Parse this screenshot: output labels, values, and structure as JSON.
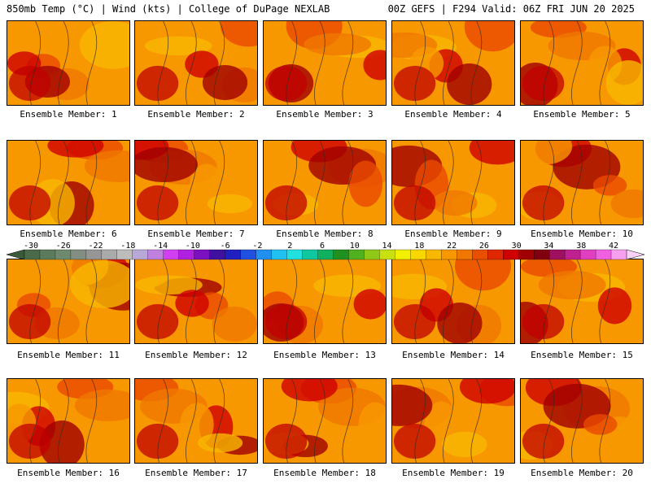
{
  "header": {
    "left": "850mb Temp (°C) | Wind (kts) | College of DuPage NEXLAB",
    "right": "00Z GEFS | F294 Valid: 06Z FRI JUN 20 2025"
  },
  "colorbar": {
    "tick_labels": [
      "-30",
      "-26",
      "-22",
      "-18",
      "-14",
      "-10",
      "-6",
      "-2",
      "2",
      "6",
      "10",
      "14",
      "18",
      "22",
      "26",
      "30",
      "34",
      "38",
      "42"
    ],
    "colors": [
      "#4a6a4a",
      "#5c7a5c",
      "#6e8a6e",
      "#828e82",
      "#969696",
      "#aaaaaa",
      "#bdbdbd",
      "#b8a8d8",
      "#c080e0",
      "#d040f0",
      "#b020e0",
      "#7a10c0",
      "#4010a0",
      "#2020c0",
      "#2050e0",
      "#2090f0",
      "#20c0f0",
      "#20e0e0",
      "#10c8a0",
      "#10b060",
      "#209020",
      "#50b020",
      "#90c818",
      "#c8e010",
      "#f0f000",
      "#f8d800",
      "#f8b800",
      "#f89800",
      "#f07800",
      "#e85000",
      "#e02800",
      "#d00000",
      "#a00000",
      "#800010",
      "#a01060",
      "#c02090",
      "#e040c0",
      "#f060e0",
      "#f8a0f0"
    ]
  },
  "panels": [
    {
      "label": "Ensemble Member: 1"
    },
    {
      "label": "Ensemble Member: 2"
    },
    {
      "label": "Ensemble Member: 3"
    },
    {
      "label": "Ensemble Member: 4"
    },
    {
      "label": "Ensemble Member: 5"
    },
    {
      "label": "Ensemble Member: 6"
    },
    {
      "label": "Ensemble Member: 7"
    },
    {
      "label": "Ensemble Member: 8"
    },
    {
      "label": "Ensemble Member: 9"
    },
    {
      "label": "Ensemble Member: 10"
    },
    {
      "label": "Ensemble Member: 11"
    },
    {
      "label": "Ensemble Member: 12"
    },
    {
      "label": "Ensemble Member: 13"
    },
    {
      "label": "Ensemble Member: 14"
    },
    {
      "label": "Ensemble Member: 15"
    },
    {
      "label": "Ensemble Member: 16"
    },
    {
      "label": "Ensemble Member: 17"
    },
    {
      "label": "Ensemble Member: 18"
    },
    {
      "label": "Ensemble Member: 19"
    },
    {
      "label": "Ensemble Member: 20"
    }
  ]
}
